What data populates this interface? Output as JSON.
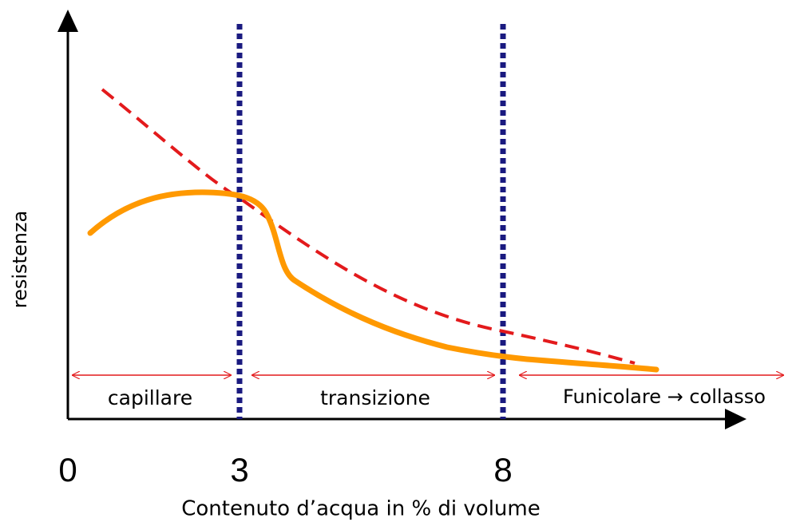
{
  "axes": {
    "x_label": "Contenuto d’acqua in % di volume",
    "y_label": "resistenza",
    "x_tick_labels": [
      "0",
      "3",
      "8"
    ]
  },
  "regions": [
    "capillare",
    "transizione",
    "Funicolare → collasso"
  ]
}
